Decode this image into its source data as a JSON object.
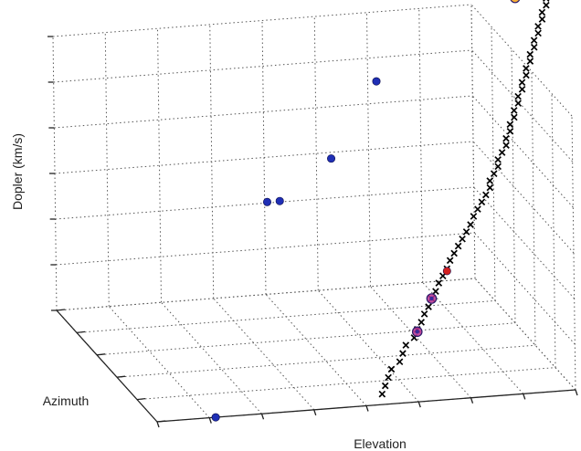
{
  "chart_data": {
    "type": "scatter",
    "projection": "3d",
    "xlabel": "Elevation",
    "ylabel": "Azimuth",
    "zlabel": "Dopler (km/s)",
    "tick_labels": false,
    "grid": true,
    "series": [
      {
        "marker": "x",
        "color": "#000000",
        "points": [
          [
            0.55,
            0.05,
            0.02
          ],
          [
            0.56,
            0.06,
            0.05
          ],
          [
            0.57,
            0.07,
            0.08
          ],
          [
            0.58,
            0.08,
            0.11
          ],
          [
            0.6,
            0.08,
            0.14
          ],
          [
            0.61,
            0.09,
            0.17
          ],
          [
            0.62,
            0.1,
            0.2
          ],
          [
            0.64,
            0.1,
            0.23
          ],
          [
            0.65,
            0.11,
            0.26
          ],
          [
            0.66,
            0.11,
            0.29
          ],
          [
            0.67,
            0.12,
            0.32
          ],
          [
            0.68,
            0.12,
            0.35
          ],
          [
            0.69,
            0.13,
            0.38
          ],
          [
            0.7,
            0.13,
            0.41
          ],
          [
            0.71,
            0.14,
            0.44
          ],
          [
            0.72,
            0.14,
            0.47
          ],
          [
            0.73,
            0.14,
            0.5
          ],
          [
            0.74,
            0.15,
            0.53
          ],
          [
            0.75,
            0.15,
            0.56
          ],
          [
            0.76,
            0.15,
            0.59
          ],
          [
            0.77,
            0.15,
            0.62
          ],
          [
            0.78,
            0.15,
            0.65
          ],
          [
            0.79,
            0.15,
            0.68
          ],
          [
            0.8,
            0.16,
            0.71
          ],
          [
            0.81,
            0.16,
            0.74
          ],
          [
            0.82,
            0.16,
            0.77
          ],
          [
            0.83,
            0.16,
            0.8
          ],
          [
            0.84,
            0.16,
            0.83
          ],
          [
            0.84,
            0.16,
            0.86
          ],
          [
            0.85,
            0.16,
            0.89
          ],
          [
            0.86,
            0.16,
            0.92
          ],
          [
            0.86,
            0.16,
            0.95
          ],
          [
            0.87,
            0.16,
            0.98
          ],
          [
            0.88,
            0.16,
            1.01
          ],
          [
            0.88,
            0.16,
            1.04
          ],
          [
            0.89,
            0.16,
            1.07
          ],
          [
            0.89,
            0.16,
            1.1
          ],
          [
            0.9,
            0.16,
            1.13
          ],
          [
            0.9,
            0.16,
            1.16
          ],
          [
            0.91,
            0.16,
            1.19
          ],
          [
            0.91,
            0.16,
            1.22
          ],
          [
            0.92,
            0.16,
            1.25
          ],
          [
            0.92,
            0.16,
            1.28
          ],
          [
            0.93,
            0.16,
            1.31
          ],
          [
            0.93,
            0.16,
            1.34
          ],
          [
            0.94,
            0.16,
            1.37
          ],
          [
            0.94,
            0.16,
            1.4
          ],
          [
            0.95,
            0.16,
            1.43
          ],
          [
            0.95,
            0.16,
            1.46
          ],
          [
            0.96,
            0.16,
            1.49
          ],
          [
            0.96,
            0.16,
            1.52
          ],
          [
            0.97,
            0.16,
            1.55
          ],
          [
            0.97,
            0.16,
            1.58
          ],
          [
            0.98,
            0.16,
            1.61
          ],
          [
            0.98,
            0.16,
            1.64
          ],
          [
            0.99,
            0.16,
            1.67
          ]
        ]
      },
      {
        "marker": "dot",
        "color": "#1f2fb5",
        "points": [
          [
            0.14,
            0.0,
            0.0
          ],
          [
            0.44,
            0.72,
            0.55
          ],
          [
            0.47,
            0.72,
            0.55
          ],
          [
            0.58,
            0.66,
            0.75
          ],
          [
            0.61,
            0.32,
            1.25
          ]
        ]
      },
      {
        "marker": "dot",
        "color": "#d32020",
        "points": [
          [
            0.73,
            0.14,
            0.49
          ]
        ]
      },
      {
        "marker": "ring",
        "color": "#f5a015",
        "points": [
          [
            0.88,
            0.05,
            1.71
          ]
        ]
      },
      {
        "marker": "ring",
        "color": "#b8308f",
        "points": [
          [
            0.69,
            0.13,
            0.38
          ],
          [
            0.65,
            0.11,
            0.25
          ]
        ]
      }
    ]
  }
}
